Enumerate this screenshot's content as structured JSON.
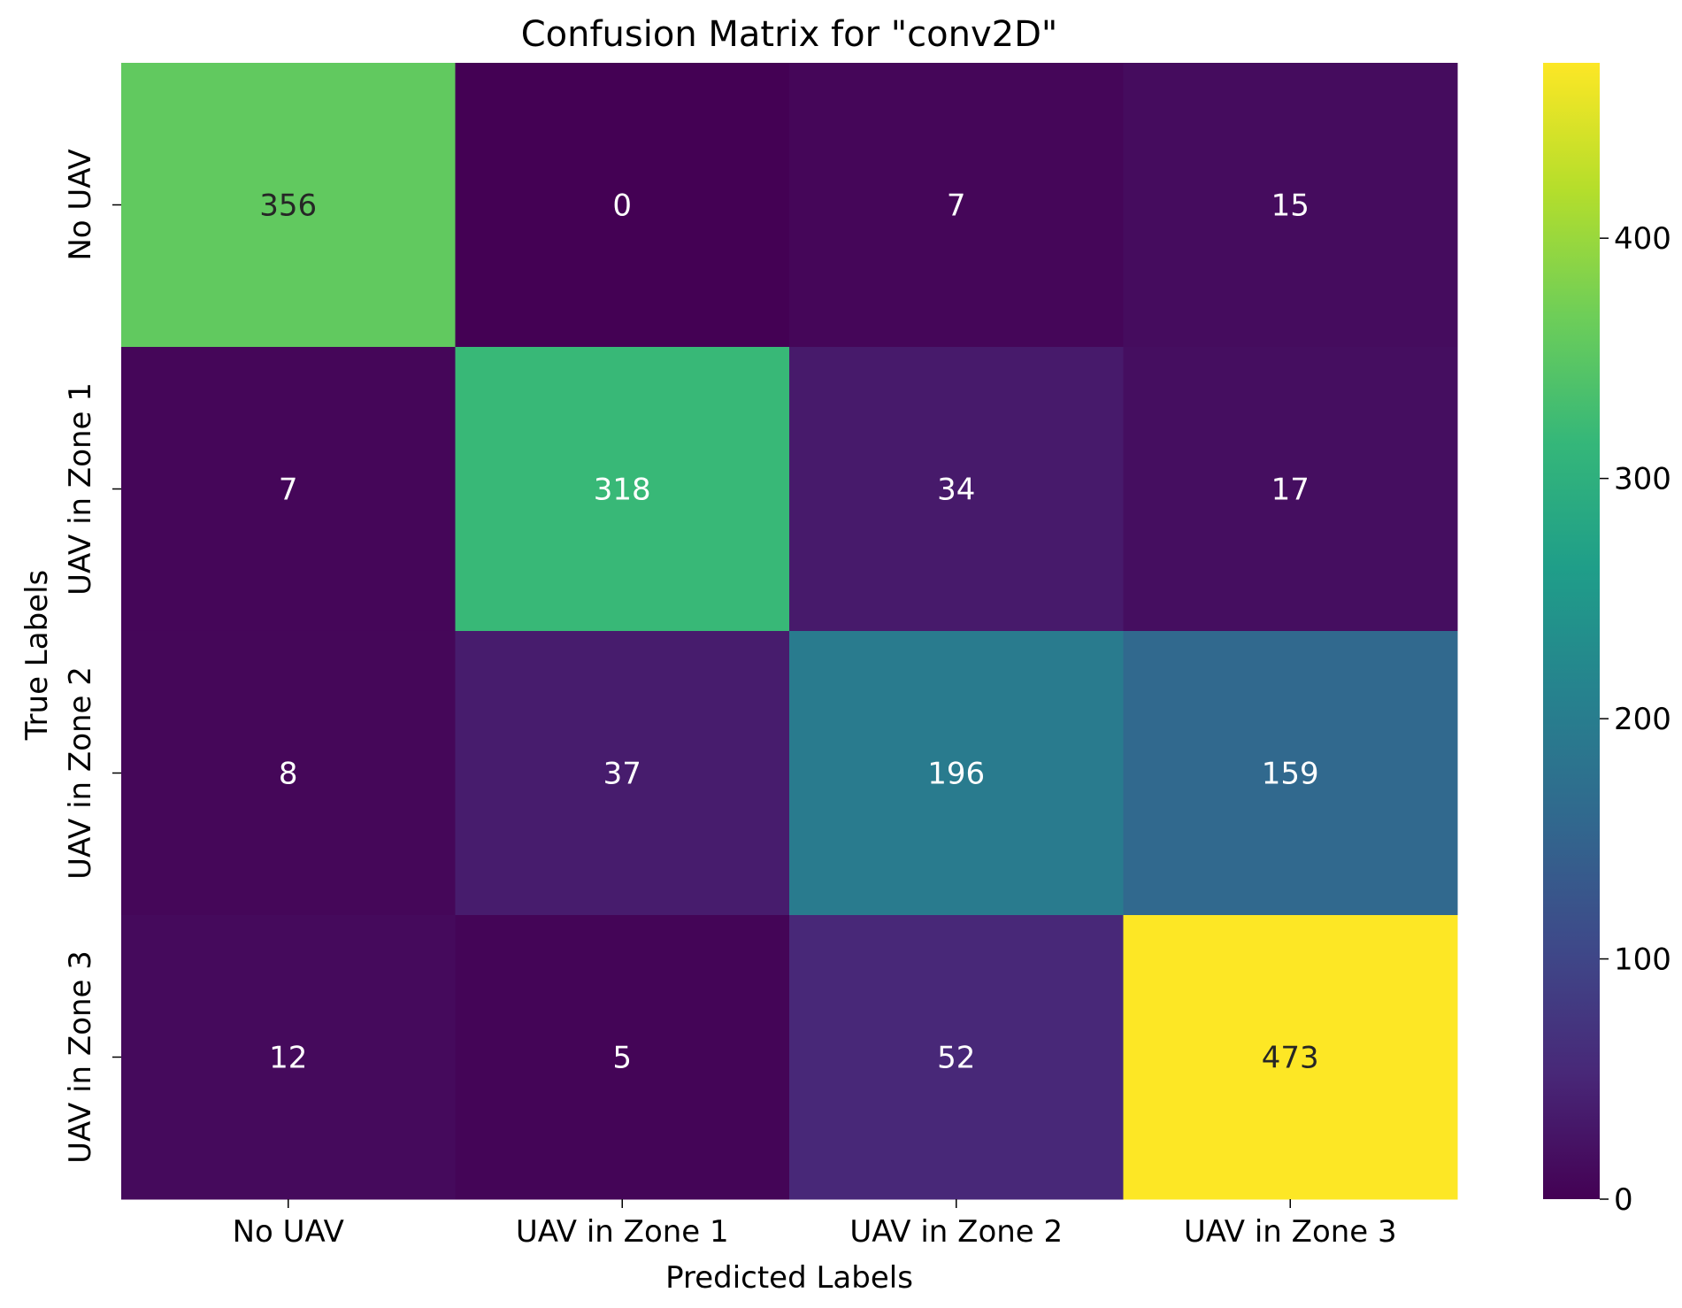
{
  "chart_data": {
    "type": "heatmap",
    "title": "Confusion Matrix for \"conv2D\"",
    "xlabel": "Predicted Labels",
    "ylabel": "True Labels",
    "x_categories": [
      "No UAV",
      "UAV in Zone 1",
      "UAV in Zone 2",
      "UAV in Zone 3"
    ],
    "y_categories": [
      "No UAV",
      "UAV in Zone 1",
      "UAV in Zone 2",
      "UAV in Zone 3"
    ],
    "values": [
      [
        356,
        0,
        7,
        15
      ],
      [
        7,
        318,
        34,
        17
      ],
      [
        8,
        37,
        196,
        159
      ],
      [
        12,
        5,
        52,
        473
      ]
    ],
    "colormap": "viridis",
    "colorbar": {
      "range": [
        0,
        473
      ],
      "ticks": [
        0,
        100,
        200,
        300,
        400
      ],
      "tick_labels": [
        "0",
        "100",
        "200",
        "300",
        "400"
      ]
    }
  }
}
